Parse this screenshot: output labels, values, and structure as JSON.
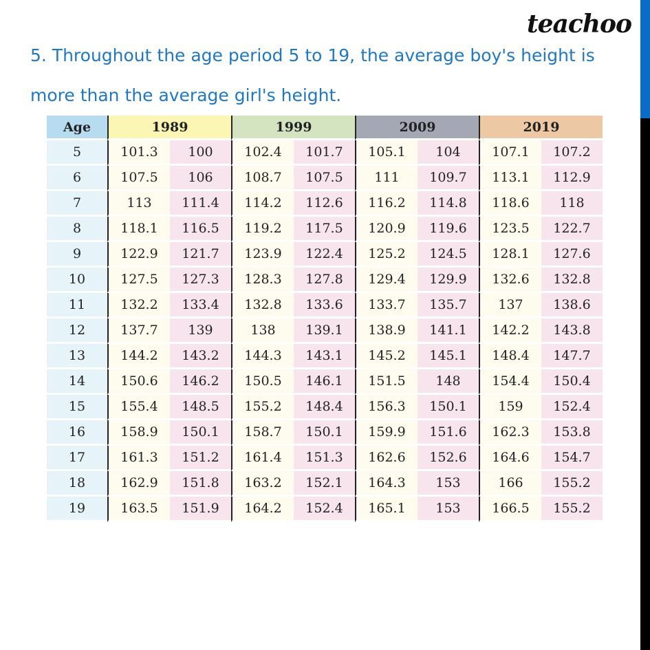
{
  "logo": "teachoo",
  "statement": "5. Throughout the age period 5 to 19, the average boy's height is more than the average girl's height.",
  "colors": {
    "accent_blue": "#0a6cc4",
    "text_blue": "#1f78c1"
  },
  "table": {
    "age_header": "Age",
    "years": [
      "1989",
      "1999",
      "2009",
      "2019"
    ],
    "rows": [
      [
        "5",
        "101.3",
        "100",
        "102.4",
        "101.7",
        "105.1",
        "104",
        "107.1",
        "107.2"
      ],
      [
        "6",
        "107.5",
        "106",
        "108.7",
        "107.5",
        "111",
        "109.7",
        "113.1",
        "112.9"
      ],
      [
        "7",
        "113",
        "111.4",
        "114.2",
        "112.6",
        "116.2",
        "114.8",
        "118.6",
        "118"
      ],
      [
        "8",
        "118.1",
        "116.5",
        "119.2",
        "117.5",
        "120.9",
        "119.6",
        "123.5",
        "122.7"
      ],
      [
        "9",
        "122.9",
        "121.7",
        "123.9",
        "122.4",
        "125.2",
        "124.5",
        "128.1",
        "127.6"
      ],
      [
        "10",
        "127.5",
        "127.3",
        "128.3",
        "127.8",
        "129.4",
        "129.9",
        "132.6",
        "132.8"
      ],
      [
        "11",
        "132.2",
        "133.4",
        "132.8",
        "133.6",
        "133.7",
        "135.7",
        "137",
        "138.6"
      ],
      [
        "12",
        "137.7",
        "139",
        "138",
        "139.1",
        "138.9",
        "141.1",
        "142.2",
        "143.8"
      ],
      [
        "13",
        "144.2",
        "143.2",
        "144.3",
        "143.1",
        "145.2",
        "145.1",
        "148.4",
        "147.7"
      ],
      [
        "14",
        "150.6",
        "146.2",
        "150.5",
        "146.1",
        "151.5",
        "148",
        "154.4",
        "150.4"
      ],
      [
        "15",
        "155.4",
        "148.5",
        "155.2",
        "148.4",
        "156.3",
        "150.1",
        "159",
        "152.4"
      ],
      [
        "16",
        "158.9",
        "150.1",
        "158.7",
        "150.1",
        "159.9",
        "151.6",
        "162.3",
        "153.8"
      ],
      [
        "17",
        "161.3",
        "151.2",
        "161.4",
        "151.3",
        "162.6",
        "152.6",
        "164.6",
        "154.7"
      ],
      [
        "18",
        "162.9",
        "151.8",
        "163.2",
        "152.1",
        "164.3",
        "153",
        "166",
        "155.2"
      ],
      [
        "19",
        "163.5",
        "151.9",
        "164.2",
        "152.4",
        "165.1",
        "153",
        "166.5",
        "155.2"
      ]
    ]
  }
}
